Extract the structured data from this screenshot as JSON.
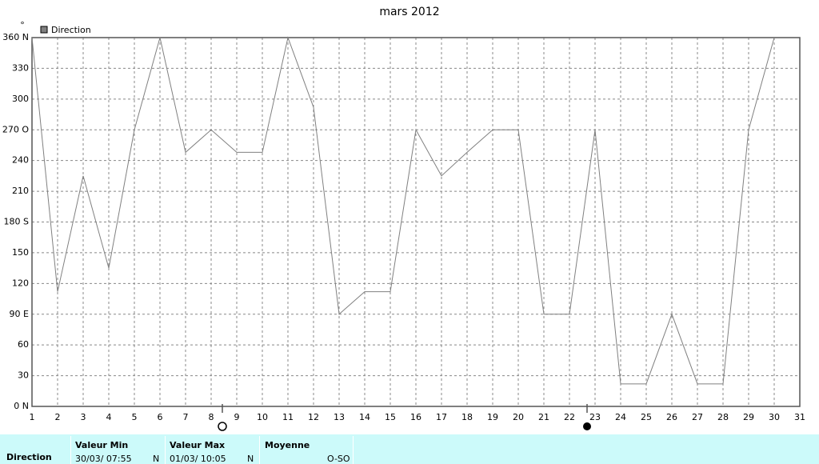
{
  "chart_data": {
    "type": "line",
    "title": "mars 2012",
    "y_label": "°",
    "x": [
      1,
      2,
      3,
      4,
      5,
      6,
      7,
      8,
      9,
      10,
      11,
      12,
      13,
      14,
      15,
      16,
      17,
      18,
      19,
      20,
      21,
      22,
      23,
      24,
      25,
      26,
      27,
      28,
      29,
      30
    ],
    "series": [
      {
        "name": "Direction",
        "color": "#808080",
        "values": [
          360,
          112,
          225,
          135,
          270,
          360,
          248,
          270,
          248,
          248,
          360,
          292,
          90,
          112,
          112,
          270,
          225,
          248,
          270,
          270,
          90,
          90,
          270,
          22,
          22,
          90,
          22,
          22,
          270,
          360
        ]
      }
    ],
    "xlim": [
      1,
      31
    ],
    "xticks": [
      1,
      2,
      3,
      4,
      5,
      6,
      7,
      8,
      9,
      10,
      11,
      12,
      13,
      14,
      15,
      16,
      17,
      18,
      19,
      20,
      21,
      22,
      23,
      24,
      25,
      26,
      27,
      28,
      29,
      30,
      31
    ],
    "ylim": [
      0,
      360
    ],
    "yticks": [
      {
        "value": 0,
        "label": "0 N"
      },
      30,
      60,
      {
        "value": 90,
        "label": "90 E"
      },
      120,
      150,
      {
        "value": 180,
        "label": "180 S"
      },
      210,
      240,
      {
        "value": 270,
        "label": "270 O"
      },
      300,
      330,
      {
        "value": 360,
        "label": "360 N"
      }
    ],
    "grid": true,
    "legend": "top-left"
  },
  "summary": {
    "row_label": "Direction",
    "min": {
      "header": "Valeur Min",
      "time": "30/03/  07:55",
      "value": "N"
    },
    "max": {
      "header": "Valeur Max",
      "time": "01/03/  10:05",
      "value": "N"
    },
    "mean": {
      "header": "Moyenne",
      "value": "O-SO"
    }
  }
}
